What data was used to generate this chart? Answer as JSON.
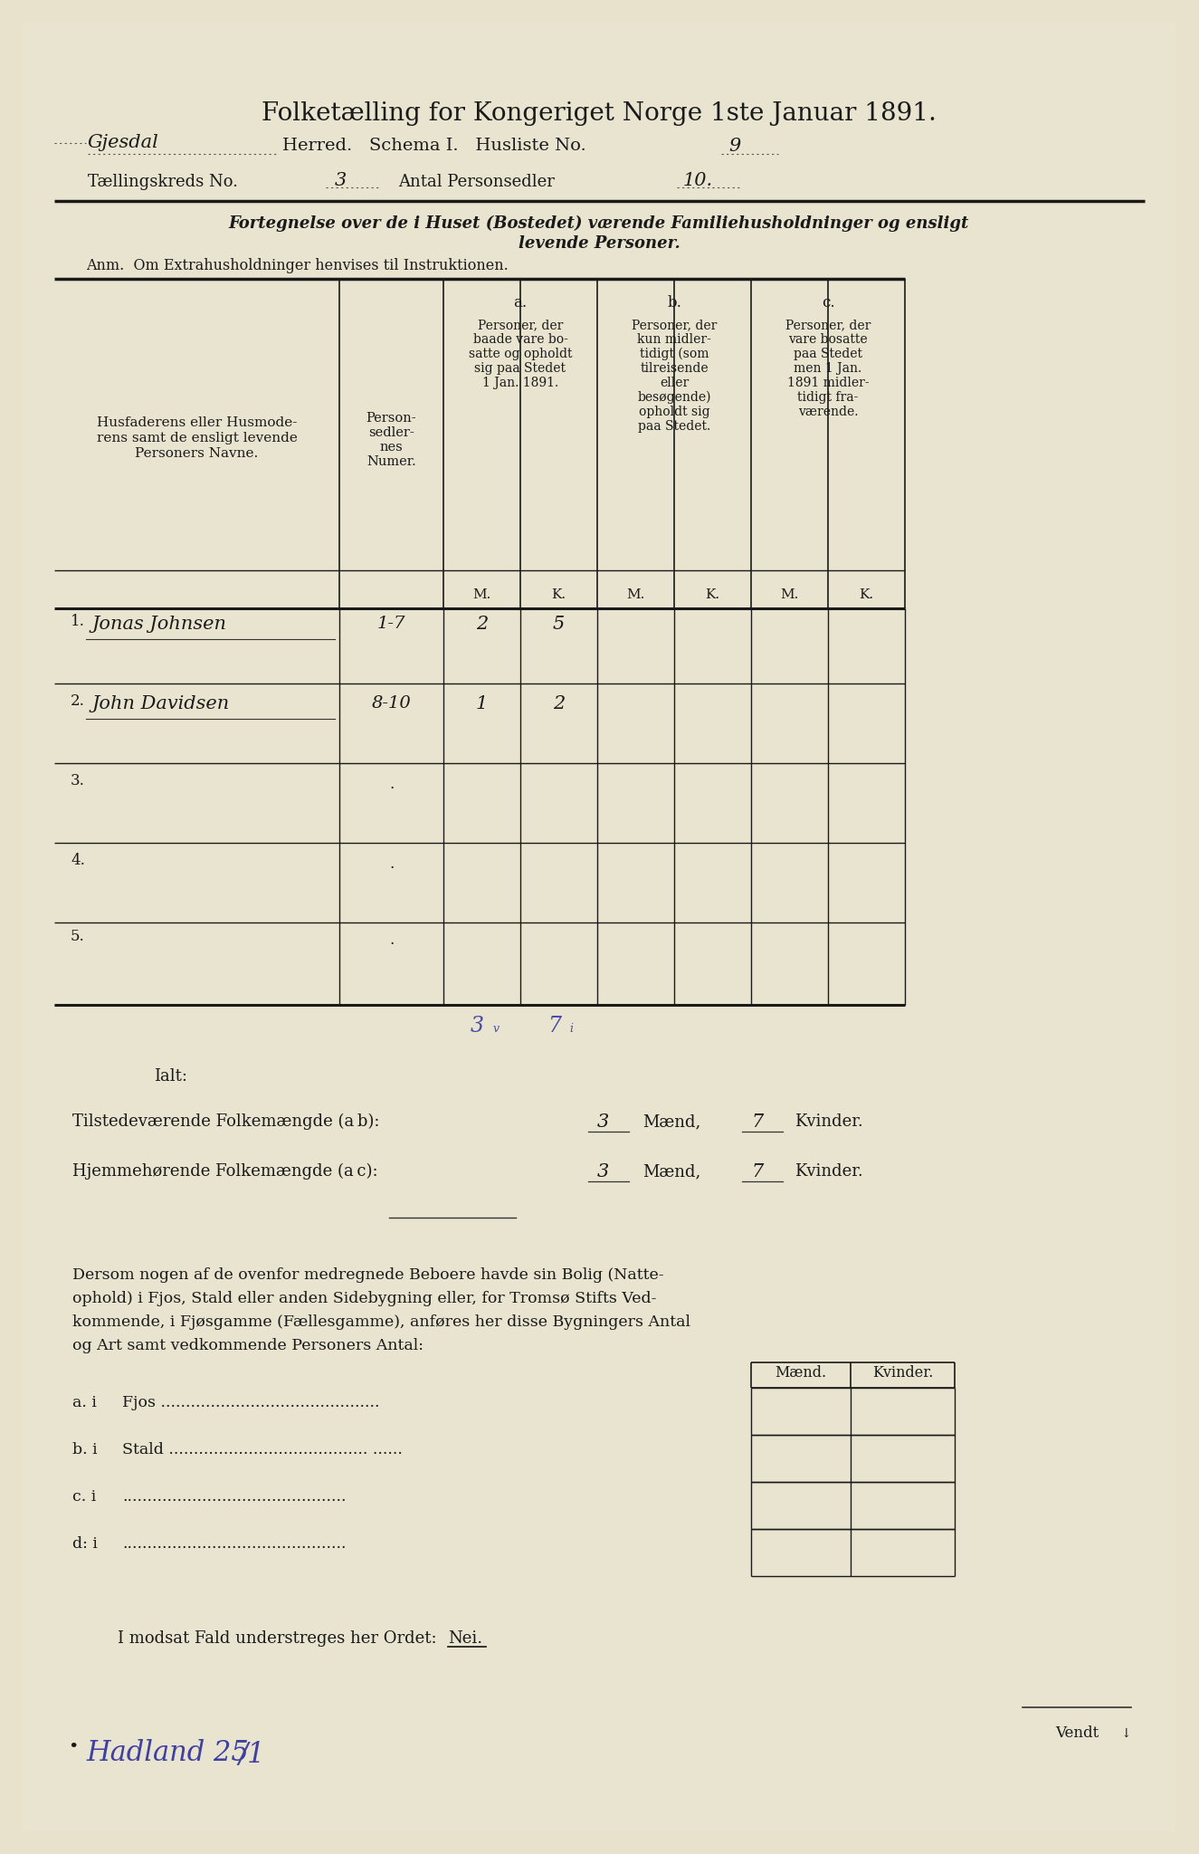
{
  "bg_color": "#e8e2cc",
  "paper_color": "#e8e4d0",
  "border_color": "#1a1a1a",
  "text_color": "#1a1a1a",
  "hw_color": "#1a1a1a",
  "hw_color2": "#4a4aaa",
  "title": "Folketælling for Kongeriget Norge 1ste Januar 1891.",
  "hw_gjesdal": "Gjesdal",
  "printed_line1": "Herred.   Schema I.   Husliste No.",
  "hw_num9": "9",
  "printed_taellings": "Tællingskreds No.",
  "hw_3": "3",
  "printed_antal": "Antal Personsedler",
  "hw_10": "10.",
  "sec_title1": "Fortegnelse over de i Huset (Bostedet) værende Familiehusholdninger og ensligt",
  "sec_title2": "levende Personer.",
  "anm": "Anm.  Om Extrahusholdninger henvises til Instruktionen.",
  "col_name_lines": [
    "Husfaderens eller Husmode-",
    "rens samt de ensligt levende",
    "Personers Navne."
  ],
  "col_num_lines": [
    "Person-",
    "sedler-",
    "nes",
    "Numer."
  ],
  "col_a_head": "a.",
  "col_a_lines": [
    "Personer, der",
    "baade vare bo-",
    "satte og opholdt",
    "sig paa Stedet",
    "1 Jan. 1891."
  ],
  "col_b_head": "b.",
  "col_b_lines": [
    "Personer, der",
    "kun midler-",
    "tidigt (som",
    "tilreisende",
    "eller",
    "besøgende)",
    "opholdt sig",
    "paa Stedet."
  ],
  "col_c_head": "c.",
  "col_c_lines": [
    "Personer, der",
    "vare bosatte",
    "paa Stedet",
    "men 1 Jan.",
    "1891 midler-",
    "tidigt fra-",
    "værende."
  ],
  "mk": [
    "M.",
    "K.",
    "M.",
    "K.",
    "M.",
    "K."
  ],
  "r1_num": "1.",
  "r1_name": "Jonas Johnsen",
  "r1_sed": "1-7",
  "r1_aM": "2",
  "r1_aK": "5",
  "r2_num": "2.",
  "r2_name": "John Davidsen",
  "r2_sed": "8-10",
  "r2_aM": "1",
  "r2_aK": "2",
  "r3_num": "3.",
  "r4_num": "4.",
  "r5_num": "5.",
  "ialt": "Ialt:",
  "tot_M": "3",
  "tot_K": "7",
  "tilsted": "Tilstedeværende Folkemængde (a b):",
  "til_M": "3",
  "til_K": "7",
  "hjemme": "Hjemmehørende Folkemængde (a c):",
  "hj_M": "3",
  "hj_K": "7",
  "maend": "Mænd,",
  "kvinder": "Kvinder.",
  "maend_box": "Mænd.",
  "kvinder_box": "Kvinder.",
  "sec2_1": "Dersom nogen af de ovenfor medregnede Beboere havde sin Bolig (Natte-",
  "sec2_2": "ophold) i Fjos, Stald eller anden Sidebygning eller, for Tromsø Stifts Ved-",
  "sec2_3": "kommende, i Fjøsgamme (Fællesgamme), anføres her disse Bygningers Antal",
  "sec2_4": "og Art samt vedkommende Personers Antal:",
  "ra": "a. i",
  "ra_t": "Fjos ............................................",
  "rb": "b. i",
  "rb_t": "Stald ........................................ ......",
  "rc": "c. i",
  "rc_t": ".............................................",
  "rd": "d: i",
  "rd_t": ".............................................",
  "modsat": "I modsat Fald understreges her Ordet: ",
  "nei": "Nei.",
  "hw_hadland": "Hadland 25",
  "hw_slash": "/1",
  "vendt": "Vendt"
}
